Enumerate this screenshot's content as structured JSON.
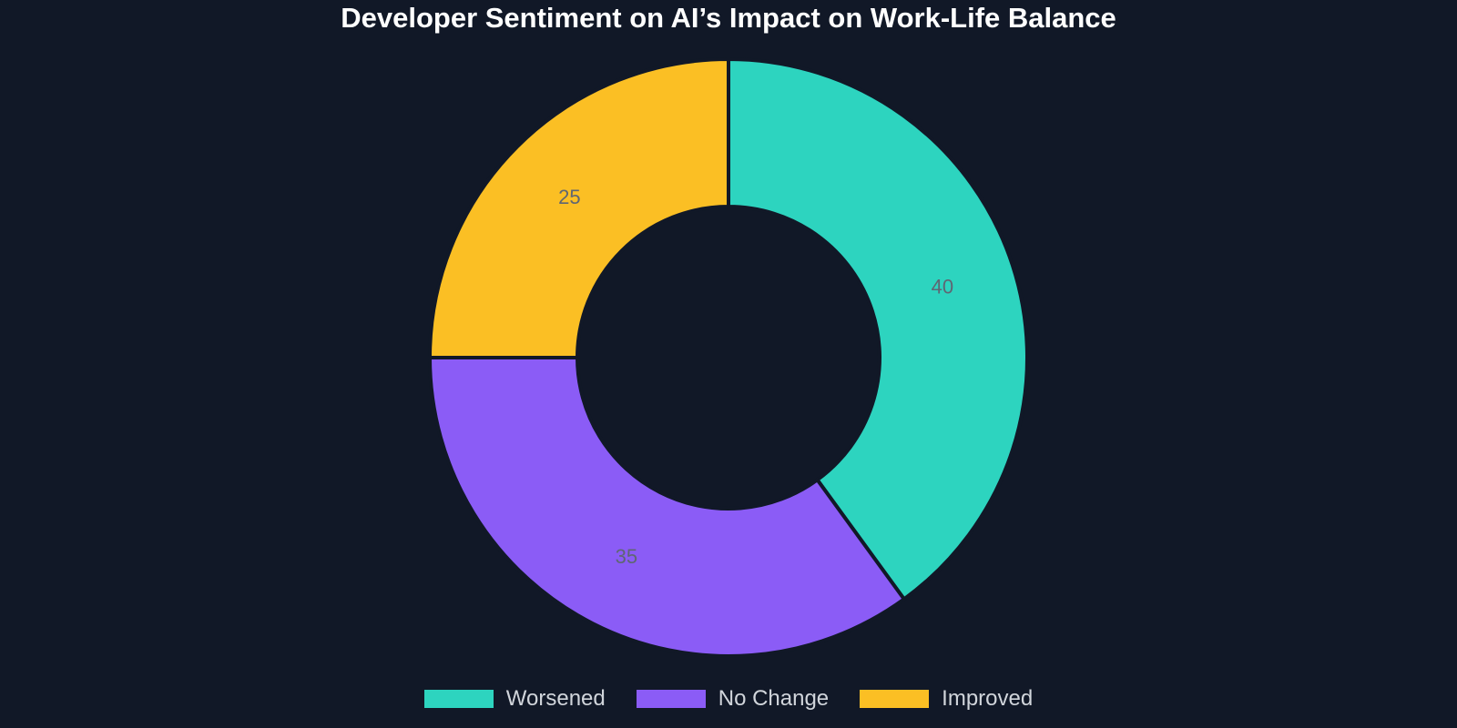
{
  "chart_data": {
    "type": "pie",
    "variant": "donut",
    "title": "Developer Sentiment on AI’s Impact on Work-Life Balance",
    "categories": [
      "Worsened",
      "No Change",
      "Improved"
    ],
    "values": [
      40,
      35,
      25
    ],
    "data_labels": [
      "40",
      "35",
      "25"
    ],
    "colors": [
      "#2dd4bf",
      "#8b5cf6",
      "#fbbf24"
    ],
    "legend_position": "bottom",
    "start_angle": "top",
    "direction": "clockwise"
  },
  "theme": {
    "background": "#111827",
    "slice_border": "#111827"
  }
}
